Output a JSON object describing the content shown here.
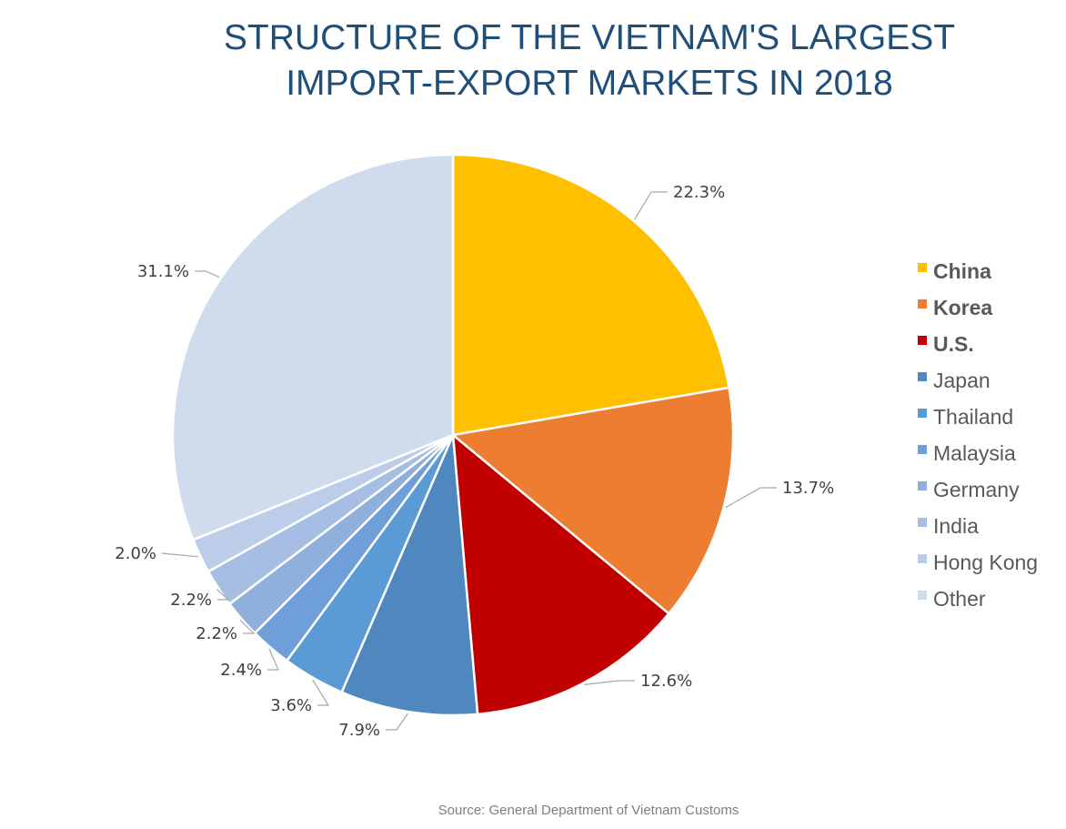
{
  "chart_data": {
    "type": "pie",
    "title_lines": [
      "STRUCTURE OF THE VIETNAM'S LARGEST",
      "IMPORT-EXPORT MARKETS IN 2018"
    ],
    "source": "Source: General Department of Vietnam Customs",
    "start_angle_deg": 0,
    "direction": "clockwise",
    "legend_position": "right",
    "slices": [
      {
        "name": "China",
        "value": 22.3,
        "label": "22.3%",
        "color": "#FFC000",
        "bold": true
      },
      {
        "name": "Korea",
        "value": 13.7,
        "label": "13.7%",
        "color": "#ED7D31",
        "bold": true
      },
      {
        "name": "U.S.",
        "value": 12.6,
        "label": "12.6%",
        "color": "#C00000",
        "bold": true
      },
      {
        "name": "Japan",
        "value": 7.9,
        "label": "7.9%",
        "color": "#4F87BF",
        "bold": false
      },
      {
        "name": "Thailand",
        "value": 3.6,
        "label": "3.6%",
        "color": "#5B9BD5",
        "bold": false
      },
      {
        "name": "Malaysia",
        "value": 2.4,
        "label": "2.4%",
        "color": "#6E9FD8",
        "bold": false
      },
      {
        "name": "Germany",
        "value": 2.2,
        "label": "2.2%",
        "color": "#8FAFDD",
        "bold": false
      },
      {
        "name": "India",
        "value": 2.2,
        "label": "2.2%",
        "color": "#A6BEE3",
        "bold": false
      },
      {
        "name": "Hong Kong",
        "value": 2.0,
        "label": "2.0%",
        "color": "#BCCDEA",
        "bold": false
      },
      {
        "name": "Other",
        "value": 31.1,
        "label": "31.1%",
        "color": "#CFDCEE",
        "bold": false
      }
    ]
  }
}
